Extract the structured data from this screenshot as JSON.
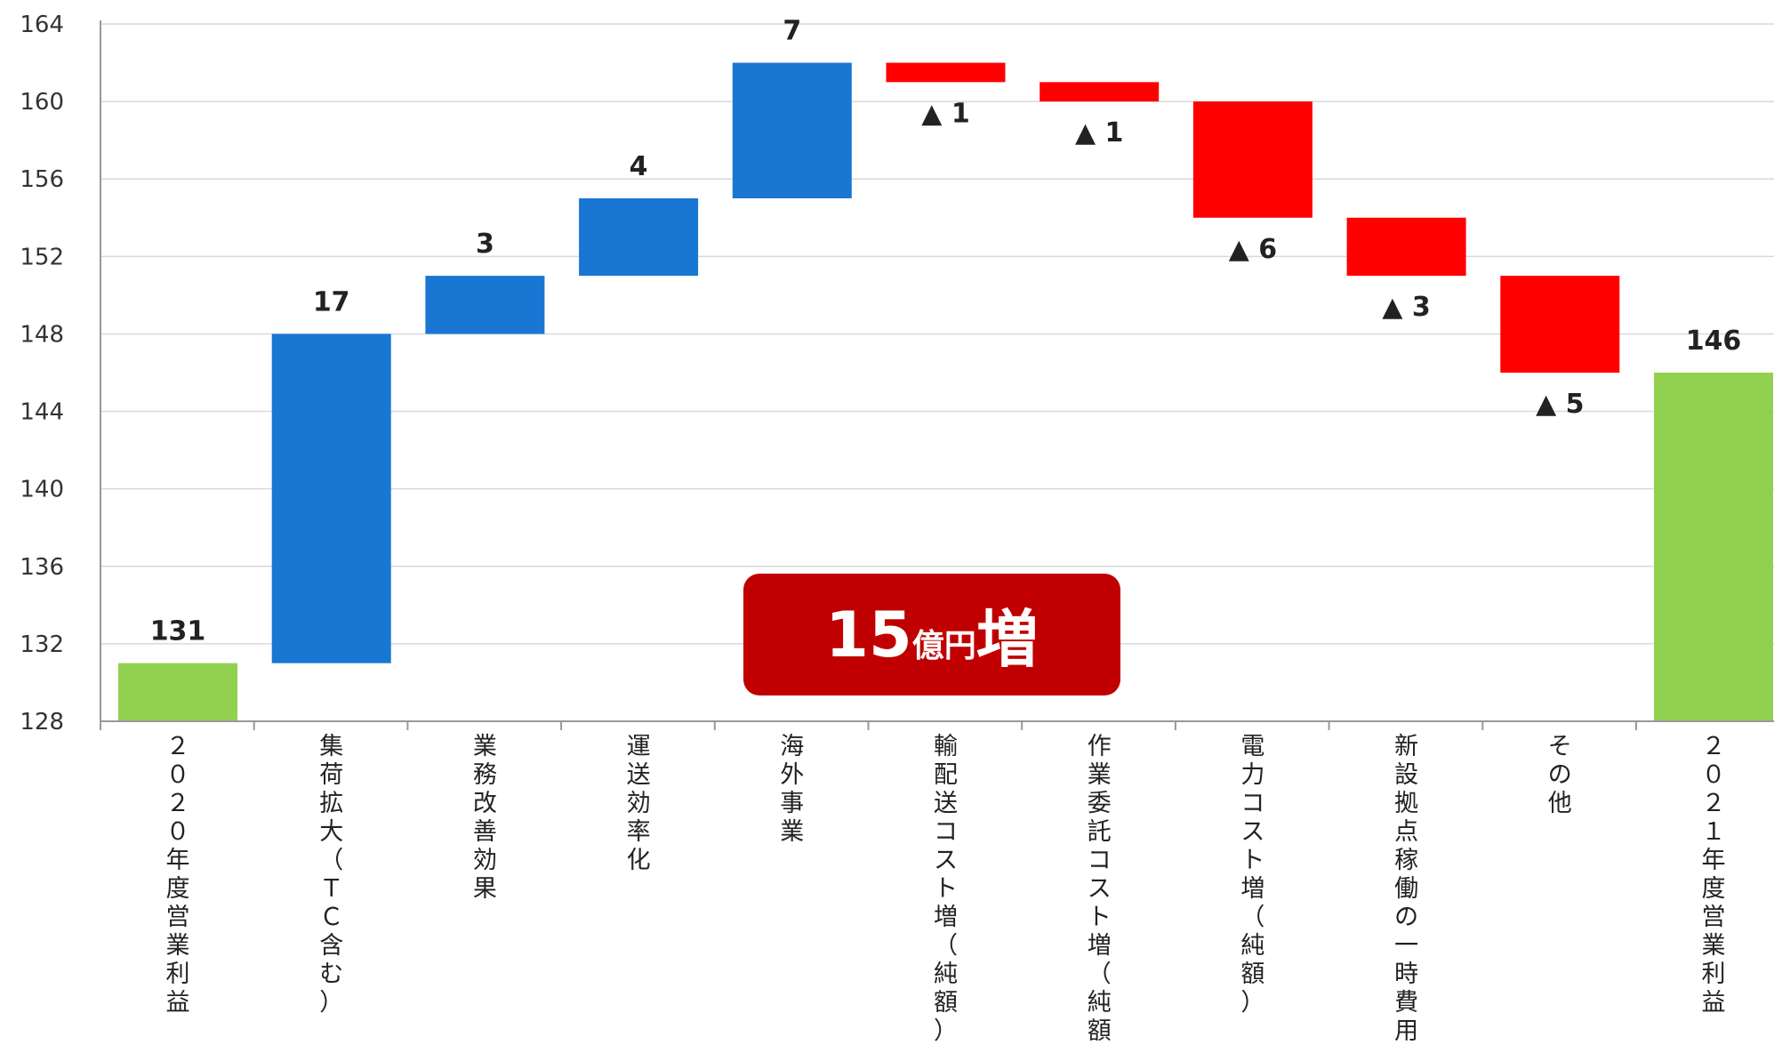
{
  "chart_data": {
    "type": "waterfall",
    "ylim": [
      128,
      164
    ],
    "yticks": [
      128,
      132,
      136,
      140,
      144,
      148,
      152,
      156,
      160,
      164
    ],
    "grid": true,
    "colors": {
      "total": "#92d050",
      "increase": "#1976d2",
      "decrease": "#ff0000"
    },
    "bars": [
      {
        "category": "２０２０年度営業利益",
        "kind": "total",
        "start": 0,
        "end": 131,
        "label": "131"
      },
      {
        "category": "集荷拡大（ＴＣ含む）",
        "kind": "increase",
        "start": 131,
        "end": 148,
        "label": "17"
      },
      {
        "category": "業務改善効果",
        "kind": "increase",
        "start": 148,
        "end": 151,
        "label": "3"
      },
      {
        "category": "運送効率化",
        "kind": "increase",
        "start": 151,
        "end": 155,
        "label": "4"
      },
      {
        "category": "海外事業",
        "kind": "increase",
        "start": 155,
        "end": 162,
        "label": "7"
      },
      {
        "category": "輸配送コスト増（純額）",
        "kind": "decrease",
        "start": 162,
        "end": 161,
        "label": "▲ 1"
      },
      {
        "category": "作業委託コスト増（純額）",
        "kind": "decrease",
        "start": 161,
        "end": 160,
        "label": "▲ 1"
      },
      {
        "category": "電力コスト増（純額）",
        "kind": "decrease",
        "start": 160,
        "end": 154,
        "label": "▲ 6"
      },
      {
        "category": "新設拠点稼働の一時費用",
        "kind": "decrease",
        "start": 154,
        "end": 151,
        "label": "▲ 3"
      },
      {
        "category": "その他",
        "kind": "decrease",
        "start": 151,
        "end": 146,
        "label": "▲ 5"
      },
      {
        "category": "２０２１年度営業利益",
        "kind": "total",
        "start": 0,
        "end": 146,
        "label": "146"
      }
    ]
  },
  "callout": {
    "number": "15",
    "unit": "億円",
    "suffix": "増"
  }
}
